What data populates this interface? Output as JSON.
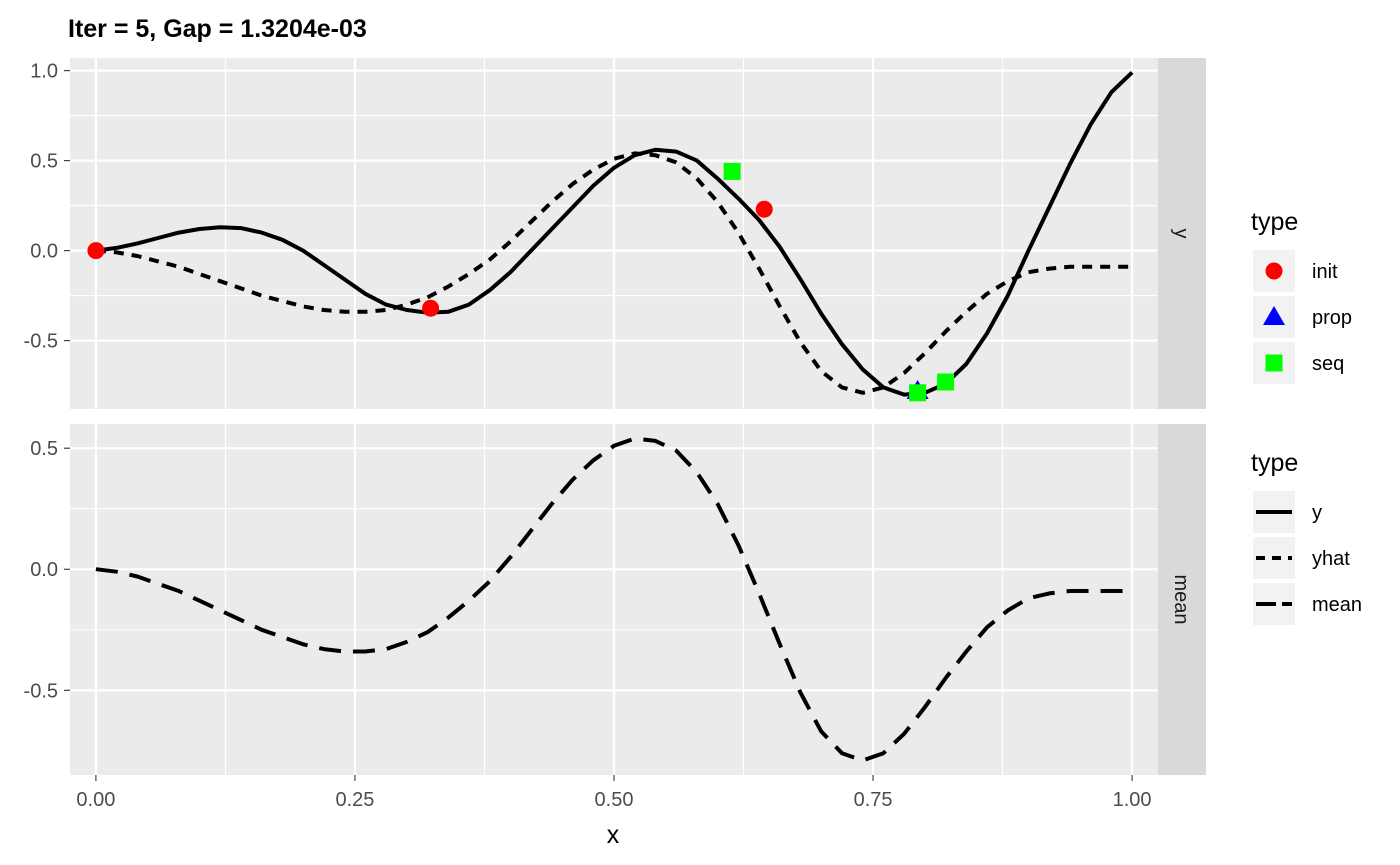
{
  "chart_data": {
    "type": "line",
    "title": "Iter = 5, Gap = 1.3204e-03",
    "xlabel": "x",
    "ylabel": "",
    "xlim": [
      -0.025,
      1.025
    ],
    "x_ticks": [
      0.0,
      0.25,
      0.5,
      0.75,
      1.0
    ],
    "x_tick_labels": [
      "0.00",
      "0.25",
      "0.50",
      "0.75",
      "1.00"
    ],
    "grid": true,
    "facets": [
      {
        "strip": "y",
        "ylim": [
          -0.88,
          1.07
        ],
        "y_ticks": [
          -0.5,
          0.0,
          0.5,
          1.0
        ],
        "y_tick_labels": [
          "-0.5",
          "0.0",
          "0.5",
          "1.0"
        ],
        "series": [
          {
            "name": "y",
            "linetype": "solid",
            "x": [
              0.0,
              0.02,
              0.04,
              0.06,
              0.08,
              0.1,
              0.12,
              0.14,
              0.16,
              0.18,
              0.2,
              0.22,
              0.24,
              0.26,
              0.28,
              0.3,
              0.32,
              0.34,
              0.36,
              0.38,
              0.4,
              0.42,
              0.44,
              0.46,
              0.48,
              0.5,
              0.52,
              0.54,
              0.56,
              0.58,
              0.6,
              0.62,
              0.64,
              0.66,
              0.68,
              0.7,
              0.72,
              0.74,
              0.76,
              0.78,
              0.8,
              0.82,
              0.84,
              0.86,
              0.88,
              0.9,
              0.92,
              0.94,
              0.96,
              0.98,
              1.0
            ],
            "values": [
              0.0,
              0.015,
              0.04,
              0.07,
              0.1,
              0.12,
              0.13,
              0.125,
              0.1,
              0.06,
              0.0,
              -0.08,
              -0.16,
              -0.24,
              -0.3,
              -0.33,
              -0.345,
              -0.34,
              -0.3,
              -0.22,
              -0.12,
              0.0,
              0.12,
              0.24,
              0.36,
              0.46,
              0.53,
              0.56,
              0.55,
              0.5,
              0.4,
              0.29,
              0.17,
              0.02,
              -0.16,
              -0.35,
              -0.52,
              -0.66,
              -0.76,
              -0.8,
              -0.79,
              -0.74,
              -0.63,
              -0.46,
              -0.25,
              0.0,
              0.24,
              0.48,
              0.7,
              0.88,
              0.99
            ]
          },
          {
            "name": "yhat",
            "linetype": "dotted",
            "x": [
              0.0,
              0.02,
              0.04,
              0.06,
              0.08,
              0.1,
              0.12,
              0.14,
              0.16,
              0.18,
              0.2,
              0.22,
              0.24,
              0.26,
              0.28,
              0.3,
              0.32,
              0.34,
              0.36,
              0.38,
              0.4,
              0.42,
              0.44,
              0.46,
              0.48,
              0.5,
              0.52,
              0.54,
              0.56,
              0.58,
              0.6,
              0.62,
              0.64,
              0.66,
              0.68,
              0.7,
              0.72,
              0.74,
              0.76,
              0.78,
              0.8,
              0.82,
              0.84,
              0.86,
              0.88,
              0.9,
              0.92,
              0.94,
              0.96,
              0.98,
              1.0
            ],
            "values": [
              0.0,
              -0.01,
              -0.03,
              -0.06,
              -0.09,
              -0.13,
              -0.17,
              -0.21,
              -0.25,
              -0.28,
              -0.31,
              -0.33,
              -0.34,
              -0.34,
              -0.33,
              -0.3,
              -0.26,
              -0.2,
              -0.13,
              -0.05,
              0.05,
              0.16,
              0.27,
              0.37,
              0.45,
              0.51,
              0.54,
              0.53,
              0.49,
              0.4,
              0.27,
              0.1,
              -0.1,
              -0.31,
              -0.51,
              -0.67,
              -0.76,
              -0.79,
              -0.76,
              -0.68,
              -0.57,
              -0.45,
              -0.34,
              -0.24,
              -0.17,
              -0.12,
              -0.1,
              -0.09,
              -0.09,
              -0.09,
              -0.09
            ]
          }
        ],
        "points": [
          {
            "type": "init",
            "x": 0.0,
            "y": 0.0
          },
          {
            "type": "init",
            "x": 0.323,
            "y": -0.32
          },
          {
            "type": "init",
            "x": 0.645,
            "y": 0.23
          },
          {
            "type": "prop",
            "x": 0.793,
            "y": -0.78
          },
          {
            "type": "seq",
            "x": 0.614,
            "y": 0.44
          },
          {
            "type": "seq",
            "x": 0.793,
            "y": -0.79
          },
          {
            "type": "seq",
            "x": 0.82,
            "y": -0.73
          }
        ]
      },
      {
        "strip": "mean",
        "ylim": [
          -0.85,
          0.6
        ],
        "y_ticks": [
          -0.5,
          0.0,
          0.5
        ],
        "y_tick_labels": [
          "-0.5",
          "0.0",
          "0.5"
        ],
        "series": [
          {
            "name": "mean",
            "linetype": "dashed",
            "x": [
              0.0,
              0.02,
              0.04,
              0.06,
              0.08,
              0.1,
              0.12,
              0.14,
              0.16,
              0.18,
              0.2,
              0.22,
              0.24,
              0.26,
              0.28,
              0.3,
              0.32,
              0.34,
              0.36,
              0.38,
              0.4,
              0.42,
              0.44,
              0.46,
              0.48,
              0.5,
              0.52,
              0.54,
              0.56,
              0.58,
              0.6,
              0.62,
              0.64,
              0.66,
              0.68,
              0.7,
              0.72,
              0.74,
              0.76,
              0.78,
              0.8,
              0.82,
              0.84,
              0.86,
              0.88,
              0.9,
              0.92,
              0.94,
              0.96,
              0.98,
              1.0
            ],
            "values": [
              0.0,
              -0.01,
              -0.03,
              -0.06,
              -0.09,
              -0.13,
              -0.17,
              -0.21,
              -0.25,
              -0.28,
              -0.31,
              -0.33,
              -0.34,
              -0.34,
              -0.33,
              -0.3,
              -0.26,
              -0.2,
              -0.13,
              -0.05,
              0.05,
              0.16,
              0.27,
              0.37,
              0.45,
              0.51,
              0.54,
              0.53,
              0.49,
              0.4,
              0.27,
              0.1,
              -0.1,
              -0.31,
              -0.51,
              -0.67,
              -0.76,
              -0.79,
              -0.76,
              -0.68,
              -0.57,
              -0.45,
              -0.34,
              -0.24,
              -0.17,
              -0.12,
              -0.1,
              -0.09,
              -0.09,
              -0.09,
              -0.09
            ]
          }
        ],
        "points": []
      }
    ],
    "legends": [
      {
        "title": "type",
        "kind": "shape",
        "placement": "right",
        "items": [
          {
            "label": "init",
            "shape": "circle",
            "color": "#ff0000"
          },
          {
            "label": "prop",
            "shape": "triangle",
            "color": "#0000ff"
          },
          {
            "label": "seq",
            "shape": "square",
            "color": "#00ff00"
          }
        ]
      },
      {
        "title": "type",
        "kind": "linetype",
        "placement": "right",
        "items": [
          {
            "label": "y",
            "linetype": "solid"
          },
          {
            "label": "yhat",
            "linetype": "dotted"
          },
          {
            "label": "mean",
            "linetype": "dashed"
          }
        ]
      }
    ],
    "colors": {
      "panel_bg": "#ebebeb",
      "strip_bg": "#d9d9d9",
      "grid": "#ffffff",
      "line": "#000000",
      "init": "#ff0000",
      "prop": "#0000ff",
      "seq": "#00ff00"
    }
  }
}
